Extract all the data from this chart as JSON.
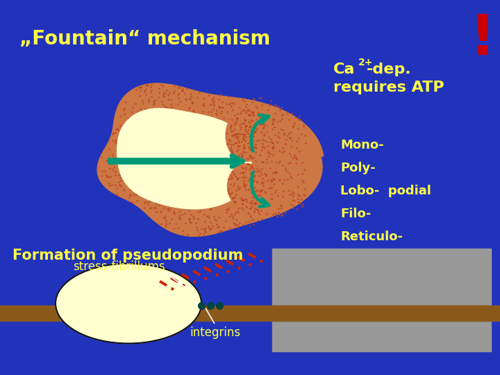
{
  "background_color": "#2233bb",
  "title": "„Fountain“ mechanism",
  "title_color": "#ffff44",
  "title_fontsize": 20,
  "exclamation_color": "#cc0000",
  "ca_color": "#ffff44",
  "mono_poly_text": [
    "Mono-",
    "Poly-",
    "Lobo-  podial",
    "Filo-",
    "Reticulo-"
  ],
  "mono_poly_color": "#ffff44",
  "formation_text": "Formation of pseudopodium",
  "formation_color": "#ffff44",
  "stress_text": "stress-fibrillums",
  "stress_color": "#ffff44",
  "integrins_text": "integrins",
  "integrins_color": "#ffff44",
  "cell_body_color": "#cc7744",
  "cell_inner_color": "#ffffd0",
  "arrow_color": "#009977",
  "floor_color": "#8B5A1A",
  "dot_color": "#bb4422"
}
